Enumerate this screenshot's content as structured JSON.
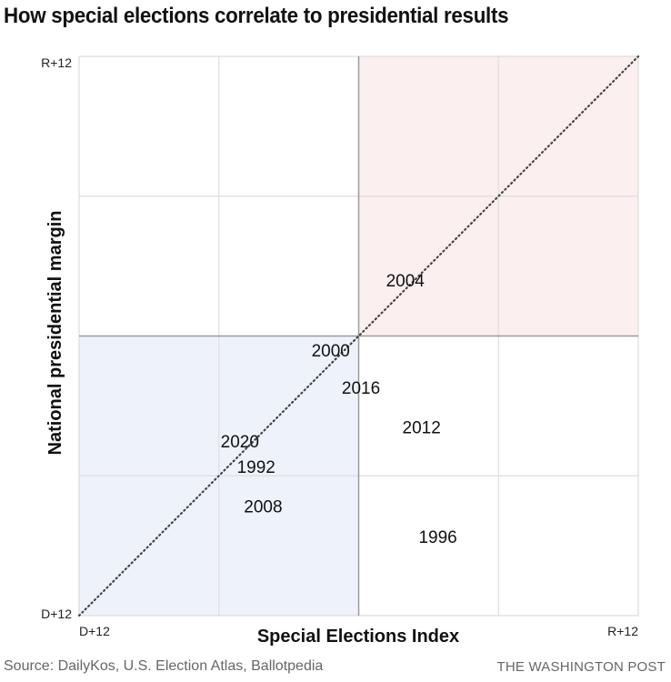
{
  "title": "How special elections correlate to presidential results",
  "footer": {
    "source": "Source: DailyKos, U.S. Election Atlas, Ballotpedia",
    "brand": "THE WASHINGTON POST"
  },
  "chart_data": {
    "type": "scatter",
    "title": "How special elections correlate to presidential results",
    "xlabel": "Special Elections Index",
    "ylabel": "National presidential margin",
    "xlim": [
      -12,
      12
    ],
    "ylim": [
      -12,
      12
    ],
    "x_tick_labels": {
      "min": "D+12",
      "max": "R+12"
    },
    "y_tick_labels": {
      "min": "D+12",
      "max": "R+12"
    },
    "grid": true,
    "reference_line": {
      "type": "diagonal",
      "style": "dotted",
      "from": [
        -12,
        -12
      ],
      "to": [
        12,
        12
      ]
    },
    "quadrant_fills": {
      "republican": "#fcefef",
      "democratic": "#eef2fb"
    },
    "point_labels_only": true,
    "points": [
      {
        "label": "2004",
        "x": 2.0,
        "y": 2.4
      },
      {
        "label": "2000",
        "x": -1.2,
        "y": -0.6
      },
      {
        "label": "2016",
        "x": 0.1,
        "y": -2.2
      },
      {
        "label": "2012",
        "x": 2.7,
        "y": -3.9
      },
      {
        "label": "2020",
        "x": -5.1,
        "y": -4.5
      },
      {
        "label": "1992",
        "x": -4.4,
        "y": -5.6
      },
      {
        "label": "2008",
        "x": -4.1,
        "y": -7.3
      },
      {
        "label": "1996",
        "x": 3.4,
        "y": -8.6
      }
    ]
  }
}
